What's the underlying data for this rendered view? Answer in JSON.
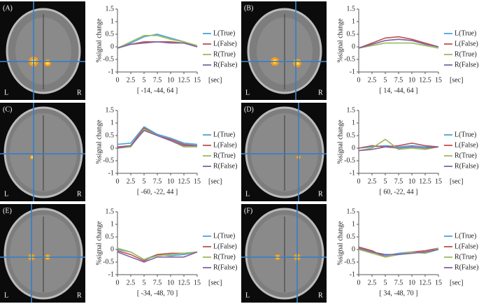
{
  "chart_data": [
    {
      "type": "line",
      "panel": "(A)",
      "left_label": "L",
      "right_label": "R",
      "x_label": "[ -14, -44, 64 ]",
      "x_unit": "[sec]",
      "y_label": "%signal change",
      "x": [
        0,
        2.5,
        5,
        7.5,
        10,
        12.5,
        15
      ],
      "xlim": [
        0,
        15
      ],
      "xticks": [
        0,
        2.5,
        5,
        7.5,
        10,
        12.5,
        15
      ],
      "ylim": [
        -1,
        1.5
      ],
      "yticks": [
        -1,
        -0.5,
        0,
        0.5,
        1,
        1.5
      ],
      "series": [
        {
          "name": "L(True)",
          "color": "#4aa3df",
          "values": [
            -0.05,
            0.15,
            0.4,
            0.5,
            0.35,
            0.2,
            0.0
          ]
        },
        {
          "name": "L(False)",
          "color": "#c0504d",
          "values": [
            -0.05,
            0.1,
            0.2,
            0.2,
            0.2,
            0.15,
            0.0
          ]
        },
        {
          "name": "R(True)",
          "color": "#9bbb59",
          "values": [
            -0.05,
            0.2,
            0.45,
            0.45,
            0.3,
            0.2,
            0.05
          ]
        },
        {
          "name": "R(False)",
          "color": "#8064a2",
          "values": [
            -0.05,
            0.1,
            0.15,
            0.2,
            0.15,
            0.15,
            0.0
          ]
        }
      ]
    },
    {
      "type": "line",
      "panel": "(B)",
      "left_label": "L",
      "right_label": "R",
      "x_label": "[ 14, -44, 64 ]",
      "x_unit": "[sec]",
      "y_label": "%signal change",
      "x": [
        0,
        2.5,
        5,
        7.5,
        10,
        12.5,
        15
      ],
      "xlim": [
        0,
        15
      ],
      "xticks": [
        0,
        2.5,
        5,
        7.5,
        10,
        12.5,
        15
      ],
      "ylim": [
        -1,
        1.5
      ],
      "yticks": [
        -1,
        -0.5,
        0,
        0.5,
        1,
        1.5
      ],
      "series": [
        {
          "name": "L(True)",
          "color": "#4aa3df",
          "values": [
            -0.05,
            0.1,
            0.25,
            0.3,
            0.25,
            0.15,
            0.0
          ]
        },
        {
          "name": "L(False)",
          "color": "#c0504d",
          "values": [
            -0.05,
            0.15,
            0.35,
            0.4,
            0.3,
            0.15,
            0.0
          ]
        },
        {
          "name": "R(True)",
          "color": "#9bbb59",
          "values": [
            -0.05,
            0.05,
            0.15,
            0.15,
            0.15,
            0.05,
            -0.05
          ]
        },
        {
          "name": "R(False)",
          "color": "#8064a2",
          "values": [
            -0.05,
            0.1,
            0.25,
            0.3,
            0.25,
            0.1,
            0.0
          ]
        }
      ]
    },
    {
      "type": "line",
      "panel": "(C)",
      "left_label": "L",
      "right_label": "R",
      "x_label": "[ -60, -22, 44 ]",
      "x_unit": "[sec]",
      "y_label": "%signal change",
      "x": [
        0,
        2.5,
        5,
        7.5,
        10,
        12.5,
        15
      ],
      "xlim": [
        0,
        15
      ],
      "xticks": [
        0,
        2.5,
        5,
        7.5,
        10,
        12.5,
        15
      ],
      "ylim": [
        -1,
        1.5
      ],
      "yticks": [
        -1,
        -0.5,
        0,
        0.5,
        1,
        1.5
      ],
      "series": [
        {
          "name": "L(True)",
          "color": "#4aa3df",
          "values": [
            0.15,
            0.2,
            0.85,
            0.55,
            0.4,
            0.2,
            0.15
          ]
        },
        {
          "name": "L(False)",
          "color": "#c0504d",
          "values": [
            0.05,
            0.1,
            0.8,
            0.5,
            0.35,
            0.15,
            0.1
          ]
        },
        {
          "name": "R(True)",
          "color": "#9bbb59",
          "values": [
            0.0,
            0.05,
            0.75,
            0.5,
            0.3,
            0.05,
            0.05
          ]
        },
        {
          "name": "R(False)",
          "color": "#8064a2",
          "values": [
            0.0,
            0.1,
            0.7,
            0.5,
            0.3,
            0.1,
            0.1
          ]
        }
      ]
    },
    {
      "type": "line",
      "panel": "(D)",
      "left_label": "L",
      "right_label": "R",
      "x_label": "[ 60, -22, 44 ]",
      "x_unit": "[sec]",
      "y_label": "%signal change",
      "x": [
        0,
        2.5,
        5,
        7.5,
        10,
        12.5,
        15
      ],
      "xlim": [
        0,
        15
      ],
      "xticks": [
        0,
        2.5,
        5,
        7.5,
        10,
        12.5,
        15
      ],
      "ylim": [
        -1,
        1.5
      ],
      "yticks": [
        -1,
        -0.5,
        0,
        0.5,
        1,
        1.5
      ],
      "series": [
        {
          "name": "L(True)",
          "color": "#4aa3df",
          "values": [
            0.0,
            0.05,
            0.1,
            0.05,
            0.1,
            0.05,
            0.05
          ]
        },
        {
          "name": "L(False)",
          "color": "#c0504d",
          "values": [
            0.0,
            0.1,
            0.05,
            0.1,
            0.2,
            0.1,
            0.05
          ]
        },
        {
          "name": "R(True)",
          "color": "#9bbb59",
          "values": [
            -0.1,
            0.0,
            0.35,
            -0.05,
            0.0,
            -0.05,
            0.05
          ]
        },
        {
          "name": "R(False)",
          "color": "#8064a2",
          "values": [
            -0.1,
            -0.05,
            0.05,
            0.0,
            0.05,
            0.0,
            0.05
          ]
        }
      ]
    },
    {
      "type": "line",
      "panel": "(E)",
      "left_label": "L",
      "right_label": "R",
      "x_label": "[ -34, -48, 70 ]",
      "x_unit": "[sec]",
      "y_label": "%signal change",
      "x": [
        0,
        2.5,
        5,
        7.5,
        10,
        12.5,
        15
      ],
      "xlim": [
        0,
        15
      ],
      "xticks": [
        0,
        2.5,
        5,
        7.5,
        10,
        12.5,
        15
      ],
      "ylim": [
        -1,
        1.5
      ],
      "yticks": [
        -1,
        -0.5,
        0,
        0.5,
        1,
        1.5
      ],
      "series": [
        {
          "name": "L(True)",
          "color": "#4aa3df",
          "values": [
            0.0,
            -0.1,
            -0.4,
            -0.2,
            -0.25,
            -0.2,
            -0.1
          ]
        },
        {
          "name": "L(False)",
          "color": "#c0504d",
          "values": [
            -0.05,
            -0.2,
            -0.45,
            -0.2,
            -0.15,
            -0.15,
            -0.1
          ]
        },
        {
          "name": "R(True)",
          "color": "#9bbb59",
          "values": [
            0.05,
            -0.1,
            -0.4,
            -0.25,
            -0.2,
            -0.15,
            -0.1
          ]
        },
        {
          "name": "R(False)",
          "color": "#8064a2",
          "values": [
            -0.1,
            -0.3,
            -0.5,
            -0.3,
            -0.3,
            -0.3,
            -0.1
          ]
        }
      ]
    },
    {
      "type": "line",
      "panel": "(F)",
      "left_label": "L",
      "right_label": "R",
      "x_label": "[ 34, -48, 70 ]",
      "x_unit": "[sec]",
      "y_label": "%signal change",
      "x": [
        0,
        2.5,
        5,
        7.5,
        10,
        12.5,
        15
      ],
      "xlim": [
        0,
        15
      ],
      "xticks": [
        0,
        2.5,
        5,
        7.5,
        10,
        12.5,
        15
      ],
      "ylim": [
        -1,
        1.5
      ],
      "yticks": [
        -1,
        -0.5,
        0,
        0.5,
        1,
        1.5
      ],
      "series": [
        {
          "name": "L(True)",
          "color": "#4aa3df",
          "values": [
            0.05,
            -0.1,
            -0.25,
            -0.15,
            -0.1,
            -0.15,
            0.0
          ]
        },
        {
          "name": "L(False)",
          "color": "#c0504d",
          "values": [
            0.1,
            -0.05,
            -0.3,
            -0.2,
            -0.1,
            -0.05,
            0.05
          ]
        },
        {
          "name": "R(True)",
          "color": "#9bbb59",
          "values": [
            0.0,
            -0.15,
            -0.3,
            -0.2,
            -0.1,
            -0.15,
            0.05
          ]
        },
        {
          "name": "R(False)",
          "color": "#8064a2",
          "values": [
            0.05,
            -0.1,
            -0.2,
            -0.2,
            -0.15,
            -0.1,
            0.0
          ]
        }
      ]
    }
  ]
}
